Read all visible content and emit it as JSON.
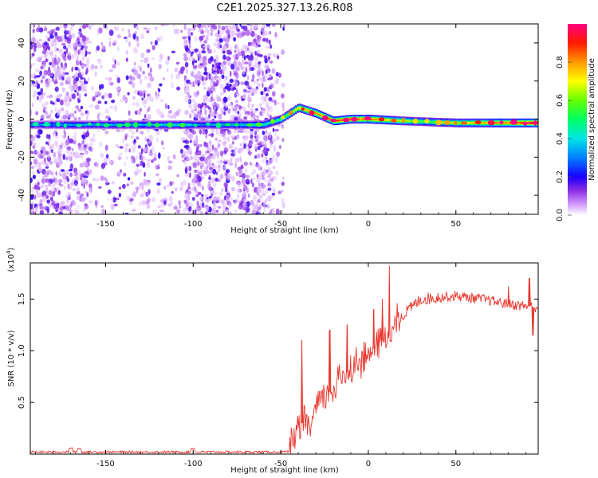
{
  "title": "C2E1.2025.327.13.26.R08",
  "chart_data": [
    {
      "type": "heatmap",
      "name": "spectrogram",
      "xlabel": "Height of straight line (km)",
      "ylabel": "Frequency (Hz)",
      "xlim": [
        -193,
        97
      ],
      "ylim": [
        -50,
        50
      ],
      "xticks": [
        -150,
        -100,
        -50,
        0,
        50
      ],
      "yticks": [
        -40,
        -20,
        0,
        20,
        40
      ],
      "colorbar": {
        "label": "Normalized spectral amplitude",
        "range": [
          0,
          1
        ],
        "ticks": [
          0.0,
          0.2,
          0.4,
          0.6,
          0.8
        ],
        "tick_labels": [
          "0.0",
          "0.2",
          "0.4",
          "0.6",
          "0.8"
        ],
        "stops": [
          "#ffffff",
          "#b24dff",
          "#5b00d9",
          "#0000ff",
          "#00bfff",
          "#00ff80",
          "#80ff00",
          "#ffff00",
          "#ff8000",
          "#ff0000",
          "#ff0080"
        ]
      },
      "ridge_frequency": [
        {
          "h": -190,
          "f": -3
        },
        {
          "h": -150,
          "f": -3
        },
        {
          "h": -105,
          "f": -3
        },
        {
          "h": -60,
          "f": -3
        },
        {
          "h": -50,
          "f": 0
        },
        {
          "h": -40,
          "f": 6
        },
        {
          "h": -30,
          "f": 3
        },
        {
          "h": -20,
          "f": -1
        },
        {
          "h": -10,
          "f": 0
        },
        {
          "h": 0,
          "f": 0
        },
        {
          "h": 20,
          "f": -1
        },
        {
          "h": 50,
          "f": -2
        },
        {
          "h": 97,
          "f": -2
        }
      ],
      "ridge_amplitude": [
        {
          "h": -190,
          "a": 0.3
        },
        {
          "h": -105,
          "a": 0.4
        },
        {
          "h": -95,
          "a": 0.3
        },
        {
          "h": -55,
          "a": 0.45
        },
        {
          "h": -40,
          "a": 0.75
        },
        {
          "h": -20,
          "a": 0.9
        },
        {
          "h": 0,
          "a": 0.85
        },
        {
          "h": 30,
          "a": 0.55
        },
        {
          "h": 55,
          "a": 0.7
        },
        {
          "h": 97,
          "a": 1.0
        }
      ],
      "noise_bands": [
        {
          "from": -193,
          "to": -160,
          "density": 0.9
        },
        {
          "from": -160,
          "to": -135,
          "density": 0.3
        },
        {
          "from": -135,
          "to": -125,
          "density": 0.6
        },
        {
          "from": -125,
          "to": -105,
          "density": 0.25
        },
        {
          "from": -105,
          "to": -55,
          "density": 1.0
        },
        {
          "from": -55,
          "to": -48,
          "density": 0.35
        }
      ]
    },
    {
      "type": "line",
      "name": "snr",
      "xlabel": "Height of straight line (km)",
      "ylabel": "SNR (10 * v/v)",
      "ylabel_scale": "(x10",
      "ylabel_scale_exp": "4",
      "ylabel_scale_close": ")",
      "xlim": [
        -193,
        97
      ],
      "ylim": [
        0,
        1.85
      ],
      "xticks": [
        -150,
        -100,
        -50,
        0,
        50
      ],
      "yticks": [
        0.5,
        1.0,
        1.5
      ],
      "ytick_labels": [
        "0.5",
        "1.0",
        "1.5"
      ],
      "color": "#e8362d",
      "trend": [
        {
          "x": -193,
          "y": 0.02
        },
        {
          "x": -45,
          "y": 0.02
        },
        {
          "x": -42,
          "y": 0.15
        },
        {
          "x": -38,
          "y": 0.3
        },
        {
          "x": -33,
          "y": 0.28
        },
        {
          "x": -28,
          "y": 0.5
        },
        {
          "x": -22,
          "y": 0.6
        },
        {
          "x": -15,
          "y": 0.75
        },
        {
          "x": -5,
          "y": 0.9
        },
        {
          "x": 5,
          "y": 1.05
        },
        {
          "x": 12,
          "y": 1.15
        },
        {
          "x": 20,
          "y": 1.35
        },
        {
          "x": 30,
          "y": 1.5
        },
        {
          "x": 50,
          "y": 1.53
        },
        {
          "x": 65,
          "y": 1.5
        },
        {
          "x": 80,
          "y": 1.45
        },
        {
          "x": 97,
          "y": 1.42
        }
      ],
      "bumps": [
        {
          "x": -170,
          "y": 0.07
        },
        {
          "x": -165,
          "y": 0.06
        },
        {
          "x": -100,
          "y": 0.06
        }
      ],
      "spikes": [
        {
          "x": -38,
          "y": 1.1
        },
        {
          "x": -36,
          "y": 0.25
        },
        {
          "x": -22,
          "y": 1.2
        },
        {
          "x": -12,
          "y": 1.25
        },
        {
          "x": 12,
          "y": 1.82
        },
        {
          "x": 8,
          "y": 1.5
        },
        {
          "x": 3,
          "y": 1.4
        },
        {
          "x": 80,
          "y": 1.62
        },
        {
          "x": 92,
          "y": 1.7
        },
        {
          "x": 94,
          "y": 1.15
        }
      ]
    }
  ]
}
